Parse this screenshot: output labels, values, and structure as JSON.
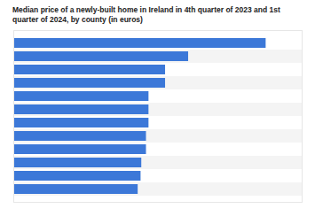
{
  "chart_data": {
    "type": "bar",
    "orientation": "horizontal",
    "title": "Median price of a newly-built home in Ireland in 4th quarter of 2023 and 1st quarter of 2024, by county (in euros)",
    "categories": [
      null,
      null,
      null,
      null,
      null,
      null,
      null,
      null,
      null,
      null,
      null,
      null
    ],
    "values": [
      700000,
      485000,
      421000,
      421000,
      375000,
      375000,
      375000,
      368000,
      368000,
      355000,
      353000,
      345000
    ],
    "color": "#3c78d8",
    "xlim": [
      0,
      800000
    ],
    "tick_labels": false
  }
}
